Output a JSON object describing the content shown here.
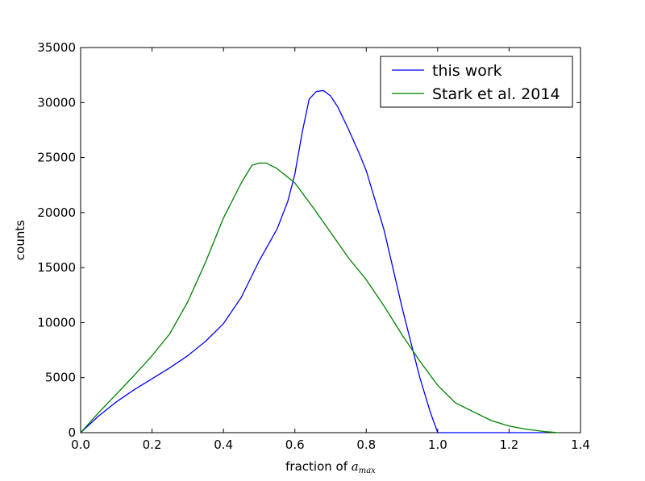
{
  "chart_data": {
    "type": "line",
    "xlabel_prefix": "fraction of ",
    "xlabel_symbol": "a",
    "xlabel_subscript": "max",
    "ylabel": "counts",
    "xlim": [
      0.0,
      1.4
    ],
    "ylim": [
      0,
      35000
    ],
    "x_ticks": [
      0.0,
      0.2,
      0.4,
      0.6,
      0.8,
      1.0,
      1.2,
      1.4
    ],
    "x_tick_labels": [
      "0.0",
      "0.2",
      "0.4",
      "0.6",
      "0.8",
      "1.0",
      "1.2",
      "1.4"
    ],
    "y_ticks": [
      0,
      5000,
      10000,
      15000,
      20000,
      25000,
      30000,
      35000
    ],
    "y_tick_labels": [
      "0",
      "5000",
      "10000",
      "15000",
      "20000",
      "25000",
      "30000",
      "35000"
    ],
    "grid": false,
    "legend_position": "top-right",
    "series": [
      {
        "name": "this work",
        "color": "#0000ff",
        "x": [
          0.0,
          0.05,
          0.1,
          0.15,
          0.2,
          0.25,
          0.3,
          0.35,
          0.4,
          0.45,
          0.5,
          0.55,
          0.58,
          0.6,
          0.62,
          0.64,
          0.66,
          0.68,
          0.7,
          0.72,
          0.75,
          0.78,
          0.8,
          0.85,
          0.9,
          0.95,
          0.98,
          1.0,
          1.1,
          1.2,
          1.3
        ],
        "y": [
          0,
          1500,
          2800,
          3900,
          4900,
          5900,
          7000,
          8300,
          9900,
          12300,
          15600,
          18500,
          21000,
          23500,
          27200,
          30300,
          31000,
          31100,
          30600,
          29600,
          27600,
          25400,
          23800,
          18400,
          11400,
          5000,
          1800,
          0,
          0,
          0,
          0
        ]
      },
      {
        "name": "Stark et al. 2014",
        "color": "#008000",
        "x": [
          0.0,
          0.05,
          0.1,
          0.15,
          0.2,
          0.25,
          0.3,
          0.35,
          0.4,
          0.45,
          0.48,
          0.5,
          0.52,
          0.55,
          0.6,
          0.65,
          0.7,
          0.75,
          0.8,
          0.85,
          0.9,
          0.95,
          1.0,
          1.05,
          1.1,
          1.15,
          1.2,
          1.25,
          1.3,
          1.34
        ],
        "y": [
          0,
          1800,
          3500,
          5200,
          7000,
          9000,
          11900,
          15500,
          19500,
          22700,
          24300,
          24500,
          24500,
          24000,
          22700,
          20500,
          18200,
          15900,
          13900,
          11500,
          8900,
          6500,
          4300,
          2700,
          1900,
          1100,
          600,
          300,
          100,
          0
        ]
      }
    ]
  }
}
